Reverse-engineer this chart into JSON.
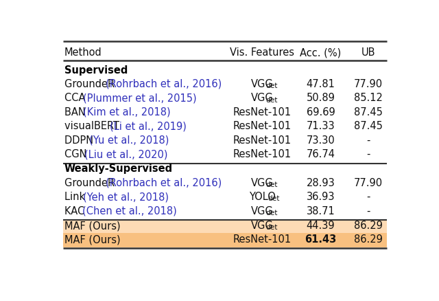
{
  "columns": [
    "Method",
    "Vis. Features",
    "Acc. (%)",
    "UB"
  ],
  "sections": [
    {
      "header": "Supervised",
      "rows": [
        {
          "method_plain": "GroundeR",
          "method_cite": "(Rohrbach et al., 2016)",
          "vis": "VGGdet",
          "acc": "47.81",
          "ub": "77.90",
          "bold_acc": false
        },
        {
          "method_plain": "CCA",
          "method_cite": "(Plummer et al., 2015)",
          "vis": "VGGdet",
          "acc": "50.89",
          "ub": "85.12",
          "bold_acc": false
        },
        {
          "method_plain": "BAN",
          "method_cite": "(Kim et al., 2018)",
          "vis": "ResNet-101",
          "acc": "69.69",
          "ub": "87.45",
          "bold_acc": false
        },
        {
          "method_plain": "visualBERT",
          "method_cite": "(Li et al., 2019)",
          "vis": "ResNet-101",
          "acc": "71.33",
          "ub": "87.45",
          "bold_acc": false
        },
        {
          "method_plain": "DDPN",
          "method_cite": "(Yu et al., 2018)",
          "vis": "ResNet-101",
          "acc": "73.30",
          "ub": "-",
          "bold_acc": false
        },
        {
          "method_plain": "CGN",
          "method_cite": "(Liu et al., 2020)",
          "vis": "ResNet-101",
          "acc": "76.74",
          "ub": "-",
          "bold_acc": false
        }
      ]
    },
    {
      "header": "Weakly-Supervised",
      "rows": [
        {
          "method_plain": "GroundeR",
          "method_cite": "(Rohrbach et al., 2016)",
          "vis": "VGGdet",
          "acc": "28.93",
          "ub": "77.90",
          "bold_acc": false
        },
        {
          "method_plain": "Link",
          "method_cite": "(Yeh et al., 2018)",
          "vis": "YOLOdet",
          "acc": "36.93",
          "ub": "-",
          "bold_acc": false
        },
        {
          "method_plain": "KAC",
          "method_cite": "(Chen et al., 2018)",
          "vis": "VGGdet",
          "acc": "38.71",
          "ub": "-",
          "bold_acc": false
        }
      ]
    }
  ],
  "ours_rows": [
    {
      "method_plain": "MAF (Ours)",
      "method_cite": "",
      "vis": "VGGdet",
      "acc": "44.39",
      "ub": "86.29",
      "bold_acc": false,
      "bg": "#fddbb5"
    },
    {
      "method_plain": "MAF (Ours)",
      "method_cite": "",
      "vis": "ResNet-101",
      "acc": "61.43",
      "ub": "86.29",
      "bold_acc": true,
      "bg": "#f8c080"
    }
  ],
  "cite_color": "#3030bb",
  "text_color": "#111111",
  "header_color": "#000000",
  "bg_color": "#ffffff",
  "font_size": 10.5,
  "section_header_font_size": 10.5
}
